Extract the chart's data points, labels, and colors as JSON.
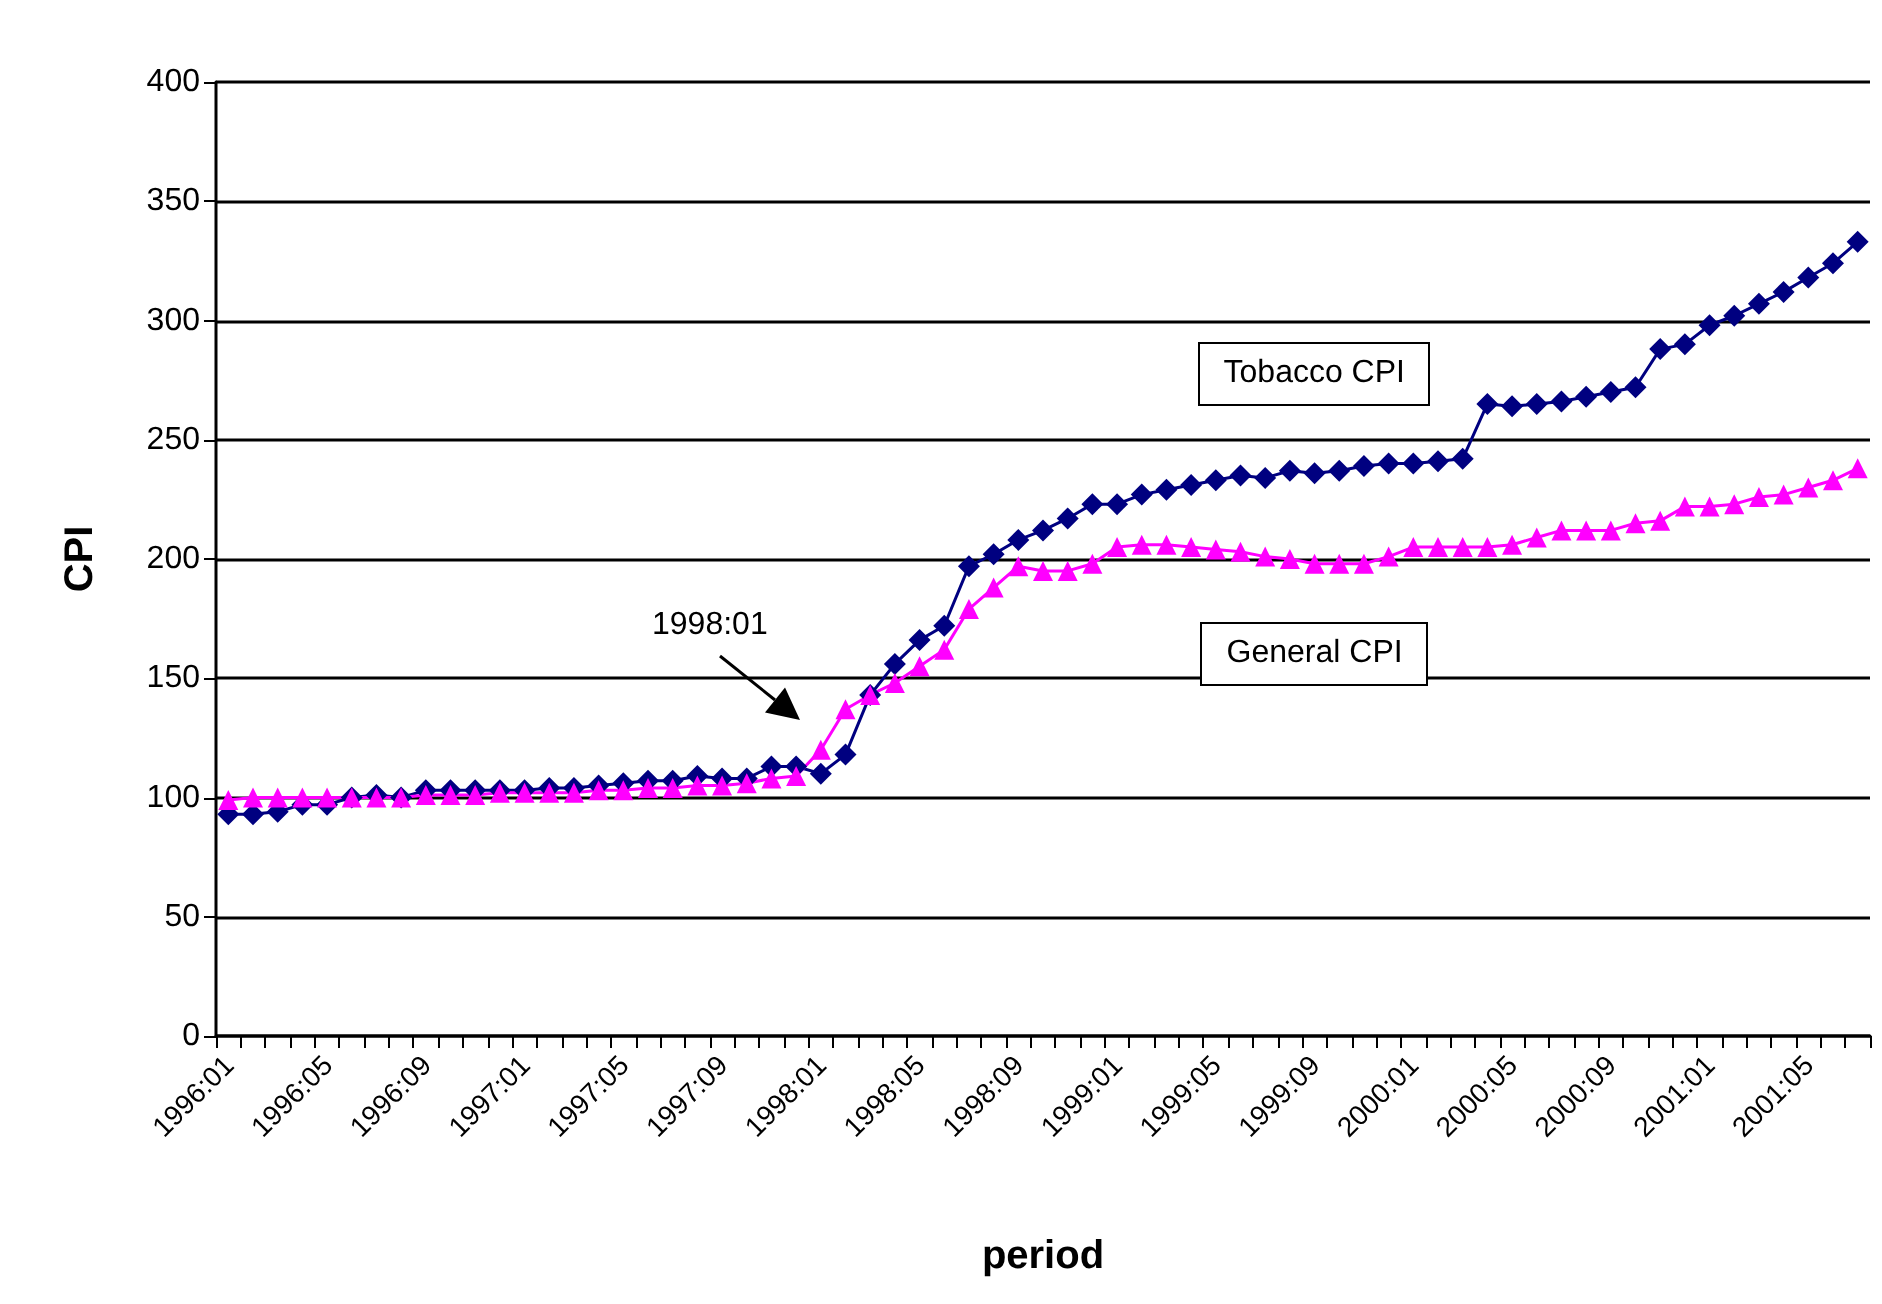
{
  "chart_data": {
    "type": "line",
    "xlabel": "period",
    "ylabel": "CPI",
    "categories": [
      "1996:01",
      null,
      null,
      null,
      "1996:05",
      null,
      null,
      null,
      "1996:09",
      null,
      null,
      null,
      "1997:01",
      null,
      null,
      null,
      "1997:05",
      null,
      null,
      null,
      "1997:09",
      null,
      null,
      null,
      "1998:01",
      null,
      null,
      null,
      "1998:05",
      null,
      null,
      null,
      "1998:09",
      null,
      null,
      null,
      "1999:01",
      null,
      null,
      null,
      "1999:05",
      null,
      null,
      null,
      "1999:09",
      null,
      null,
      null,
      "2000:01",
      null,
      null,
      null,
      "2000:05",
      null,
      null,
      null,
      "2000:09",
      null,
      null,
      null,
      "2001:01",
      null,
      null,
      null,
      "2001:05",
      null,
      null
    ],
    "series": [
      {
        "name": "Tobacco CPI",
        "color": "#000080",
        "marker": "diamond",
        "values": [
          93,
          93,
          94,
          97,
          97,
          100,
          101,
          100,
          103,
          103,
          103,
          103,
          103,
          104,
          104,
          105,
          106,
          107,
          107,
          109,
          108,
          108,
          113,
          113,
          110,
          118,
          143,
          156,
          166,
          172,
          197,
          202,
          208,
          212,
          217,
          223,
          223,
          227,
          229,
          231,
          233,
          235,
          234,
          237,
          236,
          237,
          239,
          240,
          240,
          241,
          242,
          265,
          264,
          265,
          266,
          268,
          270,
          272,
          288,
          290,
          298,
          302,
          307,
          312,
          318,
          324,
          333
        ]
      },
      {
        "name": "General CPI",
        "color": "#ff00ff",
        "marker": "triangle",
        "values": [
          99,
          100,
          100,
          100,
          100,
          100,
          100,
          100,
          101,
          101,
          101,
          102,
          102,
          102,
          102,
          103,
          103,
          104,
          104,
          105,
          105,
          106,
          108,
          109,
          120,
          137,
          143,
          148,
          155,
          162,
          179,
          188,
          197,
          195,
          195,
          198,
          205,
          206,
          206,
          205,
          204,
          203,
          201,
          200,
          198,
          198,
          198,
          201,
          205,
          205,
          205,
          205,
          206,
          209,
          212,
          212,
          212,
          215,
          216,
          222,
          222,
          223,
          226,
          227,
          230,
          233,
          238
        ]
      }
    ],
    "annotations": [
      "1998:01"
    ],
    "ylim": [
      0,
      400
    ],
    "yticks": [
      0,
      50,
      100,
      150,
      200,
      250,
      300,
      350,
      400
    ],
    "grid": "y",
    "legend": false,
    "line_style": "solid"
  }
}
